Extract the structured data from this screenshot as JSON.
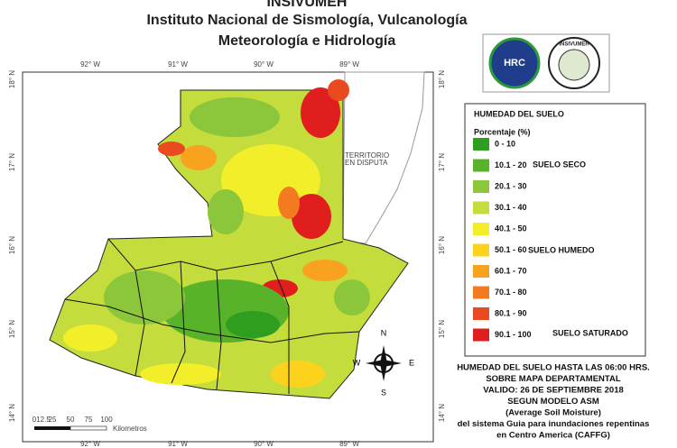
{
  "header": {
    "title": "INSIVUMEH",
    "line1": "Instituto Nacional de Sismología, Vulcanología",
    "line2": "Meteorología e Hidrología"
  },
  "logos": [
    "HRC",
    "INSIVUMEH"
  ],
  "map": {
    "longitude_labels": [
      "92° W",
      "91° W",
      "90° W",
      "89° W"
    ],
    "latitude_labels": [
      "18° N",
      "17° N",
      "16° N",
      "15° N",
      "14° N"
    ],
    "region_label": [
      "TERRITORIO",
      "EN DISPUTA"
    ],
    "scale_labels": [
      "0",
      "12.5",
      "25",
      "50",
      "75",
      "100"
    ],
    "scale_unit": "Kilometros",
    "compass": {
      "n": "N",
      "s": "S",
      "e": "E",
      "w": "W"
    }
  },
  "legend": {
    "title": "HUMEDAD DEL SUELO",
    "subtitle": "Porcentaje (%)",
    "classes": [
      {
        "label": "0 - 10",
        "color": "#2e9e1f"
      },
      {
        "label": "10.1 - 20",
        "color": "#58b22a"
      },
      {
        "label": "20.1 - 30",
        "color": "#8cc63a"
      },
      {
        "label": "30.1 - 40",
        "color": "#c4dd3c"
      },
      {
        "label": "40.1 - 50",
        "color": "#f2ee2a"
      },
      {
        "label": "50.1 - 60",
        "color": "#fcd21c"
      },
      {
        "label": "60.1 - 70",
        "color": "#f9a21f"
      },
      {
        "label": "70.1 - 80",
        "color": "#f47a20"
      },
      {
        "label": "80.1 - 90",
        "color": "#ea4a1f"
      },
      {
        "label": "90.1 - 100",
        "color": "#e01e1e"
      }
    ],
    "groups": [
      "SUELO SECO",
      "SUELO HUMEDO",
      "SUELO SATURADO"
    ]
  },
  "notes": [
    "HUMEDAD DEL SUELO HASTA LAS 06:00 HRS.",
    "SOBRE MAPA DEPARTAMENTAL",
    "VALIDO: 26 DE SEPTIEMBRE 2018",
    "SEGUN MODELO ASM",
    "(Average Soil Moisture)",
    "del sistema Guia  para inundaciones repentinas",
    "en Centro America (CAFFG)"
  ]
}
